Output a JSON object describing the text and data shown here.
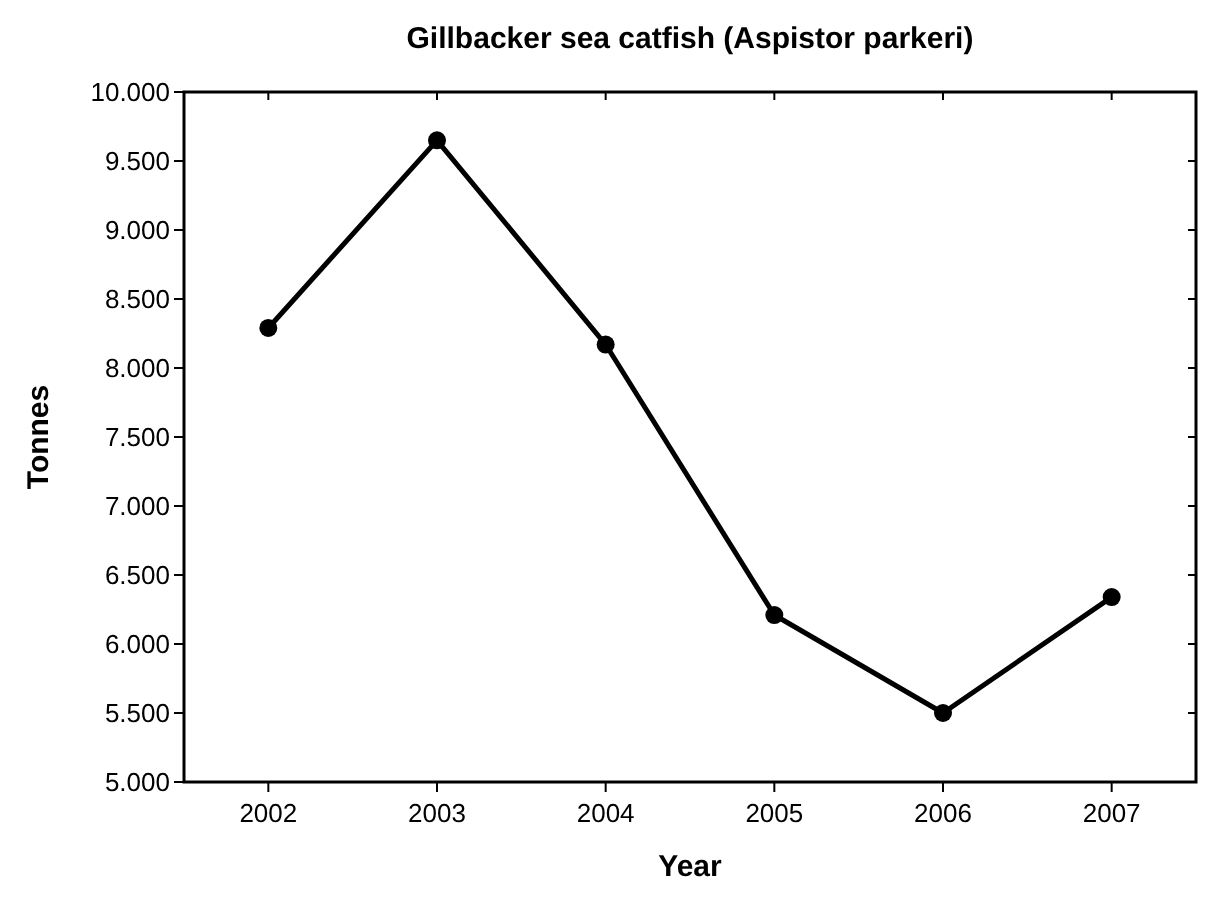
{
  "chart_data": {
    "type": "line",
    "title": "Gillbacker sea catfish (Aspistor parkeri)",
    "xlabel": "Year",
    "ylabel": "Tonnes",
    "categories": [
      "2002",
      "2003",
      "2004",
      "2005",
      "2006",
      "2007"
    ],
    "series": [
      {
        "color": "#000000",
        "values": [
          8290,
          9650,
          8170,
          6210,
          5500,
          6340
        ]
      }
    ],
    "ylim": [
      5000,
      10000
    ],
    "yticks": [
      {
        "value": 5000,
        "label": "5.000"
      },
      {
        "value": 5500,
        "label": "5.500"
      },
      {
        "value": 6000,
        "label": "6.000"
      },
      {
        "value": 6500,
        "label": "6.500"
      },
      {
        "value": 7000,
        "label": "7.000"
      },
      {
        "value": 7500,
        "label": "7.500"
      },
      {
        "value": 8000,
        "label": "8.000"
      },
      {
        "value": 8500,
        "label": "8.500"
      },
      {
        "value": 9000,
        "label": "9.000"
      },
      {
        "value": 9500,
        "label": "9.500"
      },
      {
        "value": 10000,
        "label": "10.000"
      }
    ],
    "marker": "circle",
    "line_style": "solid",
    "grid": false
  }
}
